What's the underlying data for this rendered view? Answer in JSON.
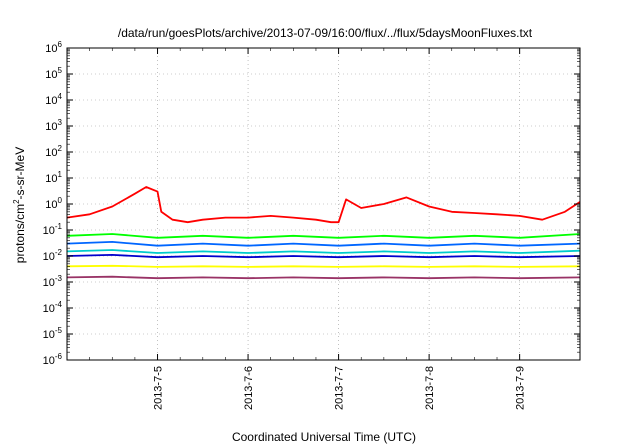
{
  "chart_data": {
    "type": "line",
    "title": "/data/run/goesPlots/archive/2013-07-09/16:00/flux/../flux/5daysMoonFluxes.txt",
    "xlabel": "Coordinated Universal Time (UTC)",
    "ylabel": "protons/cm2-s-sr-MeV",
    "ylabel_parts": {
      "pre": "protons/cm",
      "sup": "2",
      "post": "-s-sr-MeV"
    },
    "yscale": "log",
    "ylim": [
      1e-06,
      1000000.0
    ],
    "xlim": [
      "2013-07-04 00:00",
      "2013-07-09 16:00"
    ],
    "grid": true,
    "y_tick_labels": [
      {
        "base": "10",
        "exp": "-6"
      },
      {
        "base": "10",
        "exp": "-5"
      },
      {
        "base": "10",
        "exp": "-4"
      },
      {
        "base": "10",
        "exp": "-3"
      },
      {
        "base": "10",
        "exp": "-2"
      },
      {
        "base": "10",
        "exp": "-1"
      },
      {
        "base": "10",
        "exp": "0"
      },
      {
        "base": "10",
        "exp": "1"
      },
      {
        "base": "10",
        "exp": "2"
      },
      {
        "base": "10",
        "exp": "3"
      },
      {
        "base": "10",
        "exp": "4"
      },
      {
        "base": "10",
        "exp": "5"
      },
      {
        "base": "10",
        "exp": "6"
      }
    ],
    "x_tick_labels": [
      "2013-7-5",
      "2013-7-6",
      "2013-7-7",
      "2013-7-8",
      "2013-7-9"
    ],
    "series": [
      {
        "color": "#ff0000",
        "x": [
          "2013-07-04 00:00",
          "2013-07-04 06:00",
          "2013-07-04 12:00",
          "2013-07-04 18:00",
          "2013-07-04 21:00",
          "2013-07-05 00:00",
          "2013-07-05 01:00",
          "2013-07-05 04:00",
          "2013-07-05 08:00",
          "2013-07-05 12:00",
          "2013-07-05 18:00",
          "2013-07-06 00:00",
          "2013-07-06 06:00",
          "2013-07-06 12:00",
          "2013-07-06 18:00",
          "2013-07-06 22:00",
          "2013-07-07 00:00",
          "2013-07-07 02:00",
          "2013-07-07 06:00",
          "2013-07-07 12:00",
          "2013-07-07 18:00",
          "2013-07-08 00:00",
          "2013-07-08 06:00",
          "2013-07-08 12:00",
          "2013-07-08 18:00",
          "2013-07-09 00:00",
          "2013-07-09 06:00",
          "2013-07-09 12:00",
          "2013-07-09 16:00"
        ],
        "y": [
          0.3,
          0.4,
          0.8,
          2.5,
          4.5,
          3.0,
          0.5,
          0.25,
          0.2,
          0.25,
          0.3,
          0.3,
          0.35,
          0.3,
          0.25,
          0.2,
          0.2,
          1.5,
          0.7,
          1.0,
          1.8,
          0.8,
          0.5,
          0.45,
          0.4,
          0.35,
          0.25,
          0.5,
          1.2
        ]
      },
      {
        "color": "#00ff00",
        "x": [
          "2013-07-04 00:00",
          "2013-07-04 12:00",
          "2013-07-05 00:00",
          "2013-07-05 12:00",
          "2013-07-06 00:00",
          "2013-07-06 12:00",
          "2013-07-07 00:00",
          "2013-07-07 12:00",
          "2013-07-08 00:00",
          "2013-07-08 12:00",
          "2013-07-09 00:00",
          "2013-07-09 16:00"
        ],
        "y": [
          0.06,
          0.07,
          0.05,
          0.06,
          0.05,
          0.06,
          0.05,
          0.06,
          0.05,
          0.06,
          0.05,
          0.07
        ]
      },
      {
        "color": "#0066ff",
        "x": [
          "2013-07-04 00:00",
          "2013-07-04 12:00",
          "2013-07-05 00:00",
          "2013-07-05 12:00",
          "2013-07-06 00:00",
          "2013-07-06 12:00",
          "2013-07-07 00:00",
          "2013-07-07 12:00",
          "2013-07-08 00:00",
          "2013-07-08 12:00",
          "2013-07-09 00:00",
          "2013-07-09 16:00"
        ],
        "y": [
          0.03,
          0.035,
          0.025,
          0.03,
          0.025,
          0.03,
          0.025,
          0.03,
          0.025,
          0.03,
          0.025,
          0.03
        ]
      },
      {
        "color": "#00cccc",
        "x": [
          "2013-07-04 00:00",
          "2013-07-04 12:00",
          "2013-07-05 00:00",
          "2013-07-05 12:00",
          "2013-07-06 00:00",
          "2013-07-06 12:00",
          "2013-07-07 00:00",
          "2013-07-07 12:00",
          "2013-07-08 00:00",
          "2013-07-08 12:00",
          "2013-07-09 00:00",
          "2013-07-09 16:00"
        ],
        "y": [
          0.015,
          0.017,
          0.013,
          0.015,
          0.013,
          0.015,
          0.013,
          0.015,
          0.013,
          0.015,
          0.013,
          0.016
        ]
      },
      {
        "color": "#0000cc",
        "x": [
          "2013-07-04 00:00",
          "2013-07-04 12:00",
          "2013-07-05 00:00",
          "2013-07-05 12:00",
          "2013-07-06 00:00",
          "2013-07-06 12:00",
          "2013-07-07 00:00",
          "2013-07-07 12:00",
          "2013-07-08 00:00",
          "2013-07-08 12:00",
          "2013-07-09 00:00",
          "2013-07-09 16:00"
        ],
        "y": [
          0.01,
          0.011,
          0.009,
          0.01,
          0.009,
          0.01,
          0.009,
          0.01,
          0.009,
          0.01,
          0.009,
          0.01
        ]
      },
      {
        "color": "#ffff00",
        "x": [
          "2013-07-04 00:00",
          "2013-07-04 12:00",
          "2013-07-05 00:00",
          "2013-07-05 12:00",
          "2013-07-06 00:00",
          "2013-07-06 12:00",
          "2013-07-07 00:00",
          "2013-07-07 12:00",
          "2013-07-08 00:00",
          "2013-07-08 12:00",
          "2013-07-09 00:00",
          "2013-07-09 16:00"
        ],
        "y": [
          0.004,
          0.0042,
          0.0038,
          0.004,
          0.0038,
          0.004,
          0.0038,
          0.004,
          0.0038,
          0.004,
          0.0038,
          0.004
        ]
      },
      {
        "color": "#993366",
        "x": [
          "2013-07-04 00:00",
          "2013-07-04 12:00",
          "2013-07-05 00:00",
          "2013-07-05 12:00",
          "2013-07-06 00:00",
          "2013-07-06 12:00",
          "2013-07-07 00:00",
          "2013-07-07 12:00",
          "2013-07-08 00:00",
          "2013-07-08 12:00",
          "2013-07-09 00:00",
          "2013-07-09 16:00"
        ],
        "y": [
          0.0015,
          0.0016,
          0.0014,
          0.0015,
          0.0014,
          0.0015,
          0.0014,
          0.0015,
          0.0014,
          0.0015,
          0.0014,
          0.0015
        ]
      }
    ]
  }
}
